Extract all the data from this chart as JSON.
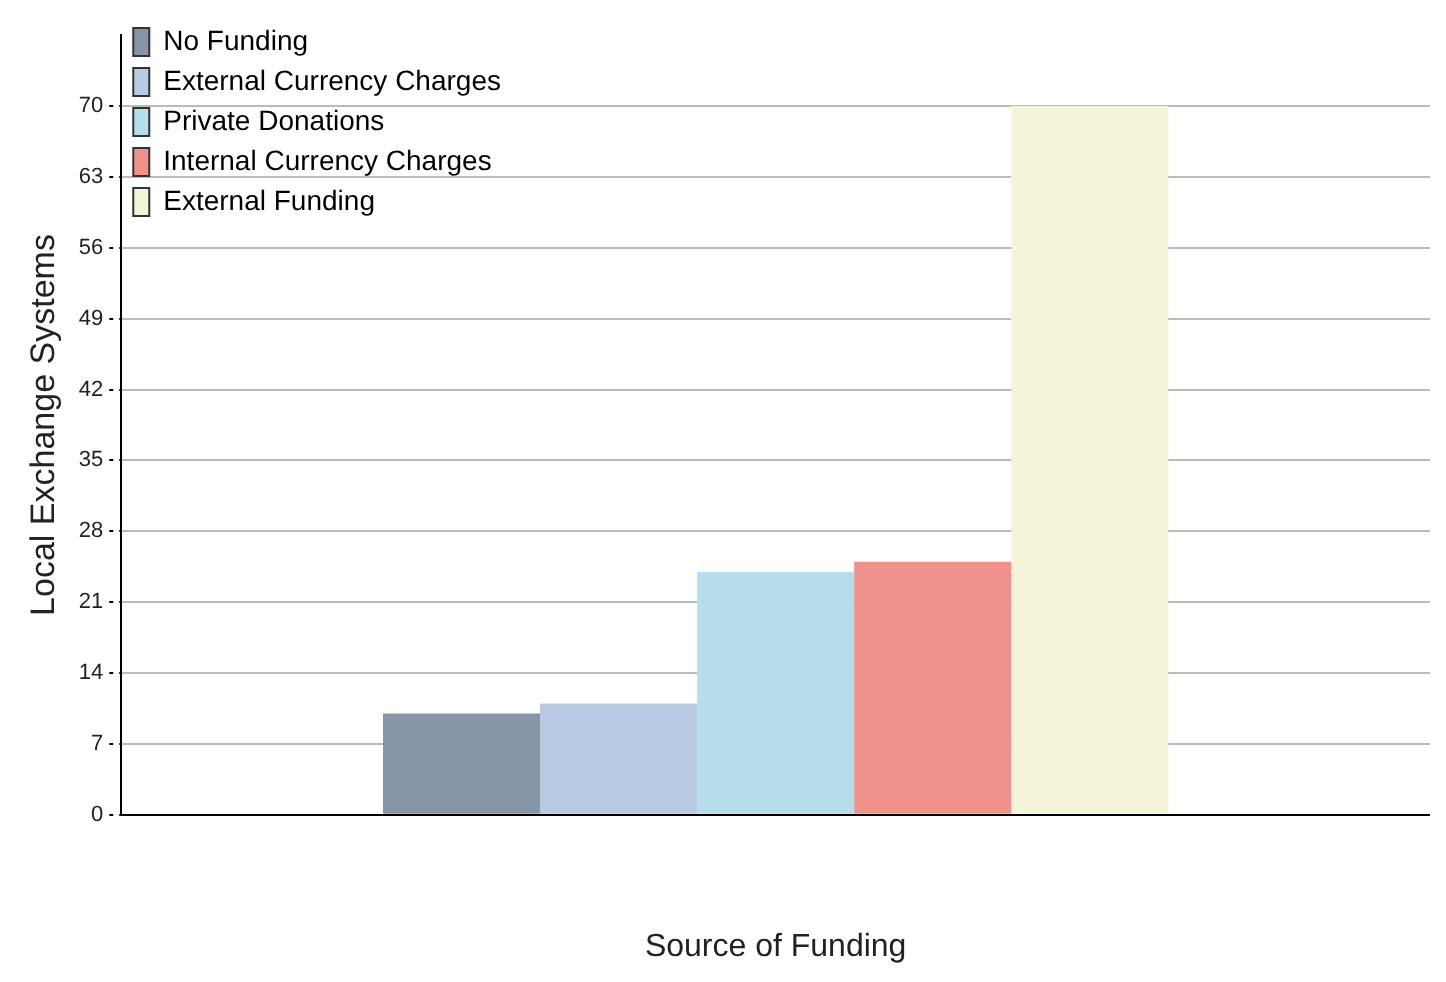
{
  "chart_data": {
    "type": "bar",
    "xlabel": "Source of Funding",
    "ylabel": "Local Exchange Systems",
    "categories": [
      null
    ],
    "series": [
      {
        "name": "No Funding",
        "color": "#8696a6",
        "values": [
          10
        ]
      },
      {
        "name": "External Currency Charges",
        "color": "#b9cbe2",
        "values": [
          11
        ]
      },
      {
        "name": "Private Donations",
        "color": "#b6deea",
        "values": [
          24
        ]
      },
      {
        "name": "Internal Currency Charges",
        "color": "#f0918c",
        "values": [
          25
        ]
      },
      {
        "name": "External Funding",
        "color": "#f6f4d8",
        "values": [
          70
        ]
      }
    ],
    "ylim": [
      0,
      77
    ],
    "yticks": [
      0,
      7,
      14,
      21,
      28,
      35,
      42,
      49,
      56,
      63,
      70
    ],
    "grid": "y",
    "legend": "top left"
  }
}
